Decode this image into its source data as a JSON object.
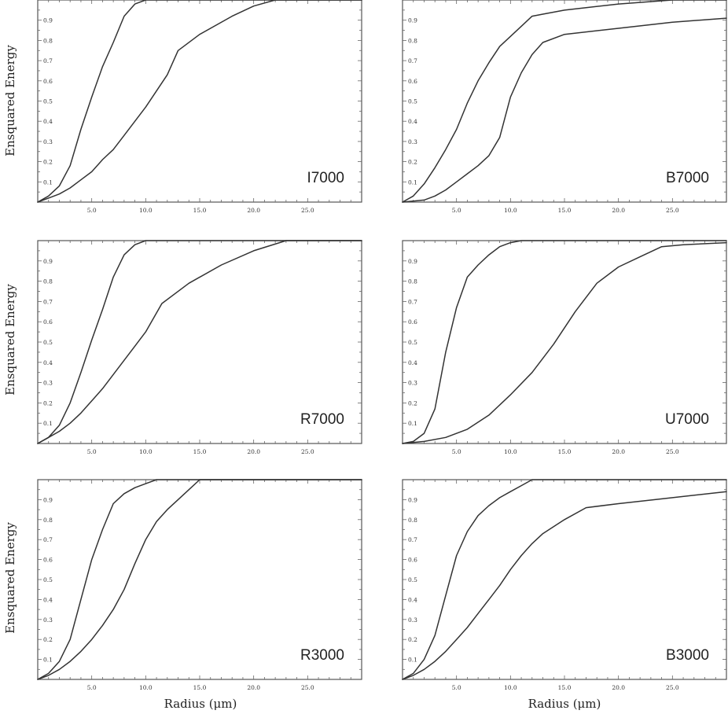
{
  "figure": {
    "ylabel": "Ensquared Energy",
    "xlabel": "Radius (μm)"
  },
  "chart_data": [
    {
      "type": "line",
      "title": "I7000",
      "xlabel": "",
      "ylabel": "Ensquared Energy",
      "xlim": [
        0,
        30
      ],
      "ylim": [
        0,
        1
      ],
      "x_ticks": [
        "5.0",
        "10.0",
        "15.0",
        "20.0",
        "25.0"
      ],
      "y_ticks": [
        "0.1",
        "0.2",
        "0.3",
        "0.4",
        "0.5",
        "0.6",
        "0.7",
        "0.8",
        "0.9"
      ],
      "series": [
        {
          "x": [
            0,
            1,
            2,
            3,
            4,
            5,
            6,
            7,
            8,
            9,
            10,
            11,
            30
          ],
          "y": [
            0,
            0.03,
            0.08,
            0.18,
            0.36,
            0.52,
            0.67,
            0.79,
            0.92,
            0.98,
            1.0,
            1.0,
            1.0
          ]
        },
        {
          "x": [
            0,
            1,
            2,
            3,
            4,
            5,
            6,
            7,
            8,
            9,
            10,
            11,
            12,
            13,
            15,
            18,
            20,
            22,
            30
          ],
          "y": [
            0,
            0.02,
            0.04,
            0.07,
            0.11,
            0.15,
            0.21,
            0.26,
            0.33,
            0.4,
            0.47,
            0.55,
            0.63,
            0.75,
            0.83,
            0.92,
            0.97,
            1.0,
            1.0
          ]
        }
      ]
    },
    {
      "type": "line",
      "title": "B7000",
      "xlabel": "",
      "ylabel": "",
      "xlim": [
        0,
        30
      ],
      "ylim": [
        0,
        1
      ],
      "x_ticks": [
        "5.0",
        "10.0",
        "15.0",
        "20.0",
        "25.0"
      ],
      "y_ticks": [
        "0.1",
        "0.2",
        "0.3",
        "0.4",
        "0.5",
        "0.6",
        "0.7",
        "0.8",
        "0.9"
      ],
      "series": [
        {
          "x": [
            0,
            1,
            2,
            3,
            4,
            5,
            6,
            7,
            8,
            9,
            10,
            11,
            12,
            13,
            15,
            20,
            25,
            30
          ],
          "y": [
            0,
            0.03,
            0.09,
            0.17,
            0.26,
            0.36,
            0.49,
            0.6,
            0.69,
            0.77,
            0.82,
            0.87,
            0.92,
            0.93,
            0.95,
            0.98,
            1.0,
            1.0
          ]
        },
        {
          "x": [
            0,
            2,
            3,
            4,
            5,
            6,
            7,
            8,
            9,
            10,
            11,
            12,
            13,
            15,
            20,
            25,
            30
          ],
          "y": [
            0,
            0.01,
            0.03,
            0.06,
            0.1,
            0.14,
            0.18,
            0.23,
            0.32,
            0.52,
            0.64,
            0.73,
            0.79,
            0.83,
            0.86,
            0.89,
            0.91
          ]
        }
      ]
    },
    {
      "type": "line",
      "title": "R7000",
      "xlabel": "",
      "ylabel": "Ensquared Energy",
      "xlim": [
        0,
        30
      ],
      "ylim": [
        0,
        1
      ],
      "x_ticks": [
        "5.0",
        "10.0",
        "15.0",
        "20.0",
        "25.0"
      ],
      "y_ticks": [
        "0.1",
        "0.2",
        "0.3",
        "0.4",
        "0.5",
        "0.6",
        "0.7",
        "0.8",
        "0.9"
      ],
      "series": [
        {
          "x": [
            0,
            1,
            2,
            3,
            4,
            5,
            6,
            7,
            8,
            9,
            10,
            30
          ],
          "y": [
            0,
            0.03,
            0.09,
            0.2,
            0.35,
            0.51,
            0.66,
            0.82,
            0.93,
            0.98,
            1.0,
            1.0
          ]
        },
        {
          "x": [
            0,
            1,
            2,
            3,
            4,
            5,
            6,
            7,
            8,
            9,
            10,
            11.5,
            14,
            17,
            20,
            23,
            30
          ],
          "y": [
            0,
            0.03,
            0.06,
            0.1,
            0.15,
            0.21,
            0.27,
            0.34,
            0.41,
            0.48,
            0.55,
            0.69,
            0.79,
            0.88,
            0.95,
            1.0,
            1.0
          ]
        }
      ]
    },
    {
      "type": "line",
      "title": "U7000",
      "xlabel": "",
      "ylabel": "",
      "xlim": [
        0,
        30
      ],
      "ylim": [
        0,
        1
      ],
      "x_ticks": [
        "5.0",
        "10.0",
        "15.0",
        "20.0",
        "25.0"
      ],
      "y_ticks": [
        "0.1",
        "0.2",
        "0.3",
        "0.4",
        "0.5",
        "0.6",
        "0.7",
        "0.8",
        "0.9"
      ],
      "series": [
        {
          "x": [
            0,
            1,
            2,
            3,
            4,
            5,
            6,
            7,
            8,
            9,
            10,
            11,
            30
          ],
          "y": [
            0,
            0.01,
            0.05,
            0.17,
            0.45,
            0.67,
            0.82,
            0.88,
            0.93,
            0.97,
            0.99,
            1.0,
            1.0
          ]
        },
        {
          "x": [
            0,
            2,
            4,
            6,
            8,
            10,
            12,
            14,
            16,
            18,
            20,
            22,
            24,
            26,
            30
          ],
          "y": [
            0,
            0.01,
            0.03,
            0.07,
            0.14,
            0.24,
            0.35,
            0.49,
            0.65,
            0.79,
            0.87,
            0.92,
            0.97,
            0.98,
            0.99
          ]
        }
      ]
    },
    {
      "type": "line",
      "title": "R3000",
      "xlabel": "Radius (μm)",
      "ylabel": "Ensquared Energy",
      "xlim": [
        0,
        30
      ],
      "ylim": [
        0,
        1
      ],
      "x_ticks": [
        "5.0",
        "10.0",
        "15.0",
        "20.0",
        "25.0"
      ],
      "y_ticks": [
        "0.1",
        "0.2",
        "0.3",
        "0.4",
        "0.5",
        "0.6",
        "0.7",
        "0.8",
        "0.9"
      ],
      "series": [
        {
          "x": [
            0,
            1,
            2,
            3,
            4,
            5,
            6,
            7,
            8,
            9,
            10,
            11,
            30
          ],
          "y": [
            0,
            0.03,
            0.09,
            0.2,
            0.4,
            0.6,
            0.75,
            0.88,
            0.93,
            0.96,
            0.98,
            1.0,
            1.0
          ]
        },
        {
          "x": [
            0,
            1,
            2,
            3,
            4,
            5,
            6,
            7,
            8,
            9,
            10,
            11,
            12,
            13,
            14,
            15,
            30
          ],
          "y": [
            0,
            0.02,
            0.05,
            0.09,
            0.14,
            0.2,
            0.27,
            0.35,
            0.45,
            0.58,
            0.7,
            0.79,
            0.85,
            0.9,
            0.95,
            1.0,
            1.0
          ]
        }
      ]
    },
    {
      "type": "line",
      "title": "B3000",
      "xlabel": "Radius (μm)",
      "ylabel": "",
      "xlim": [
        0,
        30
      ],
      "ylim": [
        0,
        1
      ],
      "x_ticks": [
        "5.0",
        "10.0",
        "15.0",
        "20.0",
        "25.0"
      ],
      "y_ticks": [
        "0.1",
        "0.2",
        "0.3",
        "0.4",
        "0.5",
        "0.6",
        "0.7",
        "0.8",
        "0.9"
      ],
      "series": [
        {
          "x": [
            0,
            1,
            2,
            3,
            4,
            5,
            6,
            7,
            8,
            9,
            10,
            11,
            12,
            30
          ],
          "y": [
            0,
            0.03,
            0.1,
            0.22,
            0.42,
            0.62,
            0.74,
            0.82,
            0.87,
            0.91,
            0.94,
            0.97,
            1.0,
            1.0
          ]
        },
        {
          "x": [
            0,
            1,
            2,
            3,
            4,
            5,
            6,
            7,
            8,
            9,
            10,
            11,
            12,
            13,
            15,
            17,
            20,
            25,
            30
          ],
          "y": [
            0,
            0.02,
            0.05,
            0.09,
            0.14,
            0.2,
            0.26,
            0.33,
            0.4,
            0.47,
            0.55,
            0.62,
            0.68,
            0.73,
            0.8,
            0.86,
            0.88,
            0.91,
            0.94
          ]
        }
      ]
    }
  ]
}
